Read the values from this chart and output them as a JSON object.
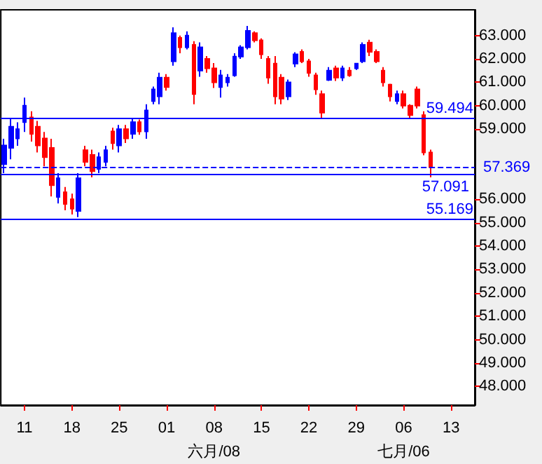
{
  "chart_data": {
    "type": "candlestick",
    "categories": [
      null,
      null,
      null,
      "11",
      null,
      null,
      null,
      null,
      null,
      null,
      "18",
      null,
      null,
      null,
      null,
      null,
      null,
      "25",
      null,
      null,
      null,
      null,
      null,
      null,
      "01",
      null,
      null,
      null,
      null,
      null,
      null,
      "08\n六月/08",
      null,
      null,
      null,
      null,
      null,
      null,
      "15",
      null,
      null,
      null,
      null,
      null,
      null,
      "22",
      null,
      null,
      null,
      null,
      null,
      null,
      "29",
      null,
      null,
      null,
      null,
      null,
      null,
      "06\n七月/06",
      null,
      null,
      null,
      null,
      null,
      null,
      "13",
      null,
      null,
      null
    ],
    "ohlc": [
      [
        57.5,
        58.59,
        57.12,
        58.3
      ],
      [
        58.2,
        59.47,
        57.71,
        59.1
      ],
      [
        58.6,
        59.29,
        58.29,
        59.0
      ],
      [
        59.3,
        60.35,
        58.88,
        60.0
      ],
      [
        59.5,
        59.76,
        58.47,
        58.8
      ],
      [
        59.1,
        59.35,
        58.0,
        58.3
      ],
      [
        58.6,
        58.88,
        57.41,
        57.8
      ],
      [
        58.2,
        58.59,
        56.12,
        56.6
      ],
      [
        56.1,
        57.12,
        55.82,
        56.9
      ],
      [
        56.3,
        56.53,
        55.53,
        55.8
      ],
      [
        56.0,
        56.24,
        55.35,
        55.6
      ],
      [
        55.5,
        57.12,
        55.24,
        56.9
      ],
      [
        58.1,
        58.29,
        57.41,
        57.6
      ],
      [
        57.9,
        58.12,
        56.94,
        57.2
      ],
      [
        57.3,
        58.0,
        57.12,
        57.8
      ],
      [
        57.6,
        58.29,
        57.41,
        58.1
      ],
      [
        58.9,
        59.06,
        58.12,
        58.4
      ],
      [
        58.3,
        59.18,
        58.0,
        59.0
      ],
      [
        59.0,
        59.18,
        58.41,
        58.6
      ],
      [
        58.8,
        59.47,
        58.59,
        59.3
      ],
      [
        59.3,
        59.41,
        58.76,
        58.9
      ],
      [
        58.9,
        60.06,
        58.59,
        59.8
      ],
      [
        60.2,
        60.82,
        60.06,
        60.7
      ],
      [
        60.4,
        61.41,
        60.06,
        61.2
      ],
      [
        61.2,
        61.35,
        60.65,
        60.8
      ],
      [
        61.9,
        63.35,
        61.71,
        63.1
      ],
      [
        62.9,
        63.0,
        62.24,
        62.5
      ],
      [
        62.5,
        63.18,
        62.41,
        63.0
      ],
      [
        62.6,
        62.76,
        60.06,
        60.5
      ],
      [
        61.5,
        62.71,
        61.24,
        62.5
      ],
      [
        62.0,
        62.12,
        61.41,
        61.6
      ],
      [
        61.6,
        61.82,
        60.76,
        61.0
      ],
      [
        60.8,
        61.53,
        60.35,
        61.3
      ],
      [
        61.0,
        61.35,
        60.82,
        61.2
      ],
      [
        61.3,
        62.24,
        61.24,
        62.1
      ],
      [
        62.1,
        62.59,
        62.0,
        62.5
      ],
      [
        62.5,
        63.41,
        62.41,
        63.2
      ],
      [
        63.1,
        63.18,
        62.71,
        62.8
      ],
      [
        62.8,
        62.88,
        62.0,
        62.2
      ],
      [
        62.0,
        62.12,
        60.94,
        61.2
      ],
      [
        61.8,
        62.12,
        60.06,
        60.4
      ],
      [
        61.2,
        61.35,
        60.06,
        60.3
      ],
      [
        60.4,
        61.12,
        60.24,
        61.0
      ],
      [
        61.8,
        62.29,
        61.65,
        62.2
      ],
      [
        62.3,
        62.41,
        61.82,
        61.9
      ],
      [
        61.9,
        62.0,
        61.24,
        61.4
      ],
      [
        61.3,
        61.41,
        60.47,
        60.7
      ],
      [
        60.5,
        60.65,
        59.47,
        59.7
      ],
      [
        61.1,
        61.65,
        61.06,
        61.5
      ],
      [
        61.6,
        61.71,
        61.06,
        61.2
      ],
      [
        61.2,
        61.71,
        61.06,
        61.6
      ],
      [
        61.5,
        61.65,
        61.24,
        61.3
      ],
      [
        61.6,
        61.82,
        61.53,
        61.8
      ],
      [
        61.9,
        62.71,
        61.82,
        62.6
      ],
      [
        62.7,
        62.82,
        62.12,
        62.3
      ],
      [
        62.3,
        62.41,
        61.82,
        61.9
      ],
      [
        61.5,
        61.65,
        60.82,
        61.0
      ],
      [
        60.9,
        60.94,
        60.18,
        60.4
      ],
      [
        60.2,
        60.65,
        60.06,
        60.5
      ],
      [
        60.5,
        60.65,
        59.88,
        60.0
      ],
      [
        60.0,
        60.06,
        59.47,
        59.6
      ],
      [
        60.7,
        60.82,
        59.88,
        60.0
      ],
      [
        59.6,
        59.76,
        57.88,
        58.0
      ],
      [
        58.0,
        58.12,
        56.94,
        57.37
      ],
      null,
      null,
      null,
      null,
      null,
      null
    ],
    "colors": [
      "#0000ff",
      "#0000ff",
      "#0000ff",
      "#0000ff",
      "#ff0000",
      "#ff0000",
      "#ff0000",
      "#ff0000",
      "#0000ff",
      "#ff0000",
      "#ff0000",
      "#0000ff",
      "#ff0000",
      "#ff0000",
      "#0000ff",
      "#0000ff",
      "#ff0000",
      "#0000ff",
      "#ff0000",
      "#0000ff",
      "#ff0000",
      "#0000ff",
      "#0000ff",
      "#0000ff",
      "#ff0000",
      "#0000ff",
      "#ff0000",
      "#0000ff",
      "#ff0000",
      "#0000ff",
      "#ff0000",
      "#ff0000",
      "#0000ff",
      "#0000ff",
      "#0000ff",
      "#0000ff",
      "#0000ff",
      "#ff0000",
      "#ff0000",
      "#ff0000",
      "#ff0000",
      "#ff0000",
      "#0000ff",
      "#0000ff",
      "#ff0000",
      "#ff0000",
      "#ff0000",
      "#ff0000",
      "#0000ff",
      "#ff0000",
      "#0000ff",
      "#ff0000",
      "#0000ff",
      "#0000ff",
      "#ff0000",
      "#ff0000",
      "#ff0000",
      "#ff0000",
      "#0000ff",
      "#ff0000",
      "#ff0000",
      "#ff0000",
      "#ff0000",
      "#ff0000",
      null,
      null,
      null,
      null,
      null,
      null
    ],
    "ylim": [
      47.2,
      64.1
    ],
    "yticks": [
      {
        "value": 48,
        "label": "48.000"
      },
      {
        "value": 49,
        "label": "49.000"
      },
      {
        "value": 50,
        "label": "50.000"
      },
      {
        "value": 51,
        "label": "51.000"
      },
      {
        "value": 52,
        "label": "52.000"
      },
      {
        "value": 53,
        "label": "53.000"
      },
      {
        "value": 54,
        "label": "54.000"
      },
      {
        "value": 55,
        "label": "55.000"
      },
      {
        "value": 56,
        "label": "56.000"
      },
      {
        "value": 59,
        "label": "59.000"
      },
      {
        "value": 60,
        "label": "60.000"
      },
      {
        "value": 61,
        "label": "61.000"
      },
      {
        "value": 62,
        "label": "62.000"
      },
      {
        "value": 63,
        "label": "63.000"
      }
    ],
    "ref_lines": [
      {
        "axis": "y",
        "value": 59.494,
        "label": "59.494",
        "color": "#0000ff",
        "line_style": "solid"
      },
      {
        "axis": "y",
        "value": 57.091,
        "label": "57.091",
        "color": "#0000ff",
        "line_style": "solid"
      },
      {
        "axis": "y",
        "value": 55.169,
        "label": "55.169",
        "color": "#0000ff",
        "line_style": "solid"
      },
      {
        "axis": "y",
        "value": 57.369,
        "label": "57.369",
        "color": "#0000ff",
        "line_style": "dashed"
      }
    ],
    "grid": false
  }
}
